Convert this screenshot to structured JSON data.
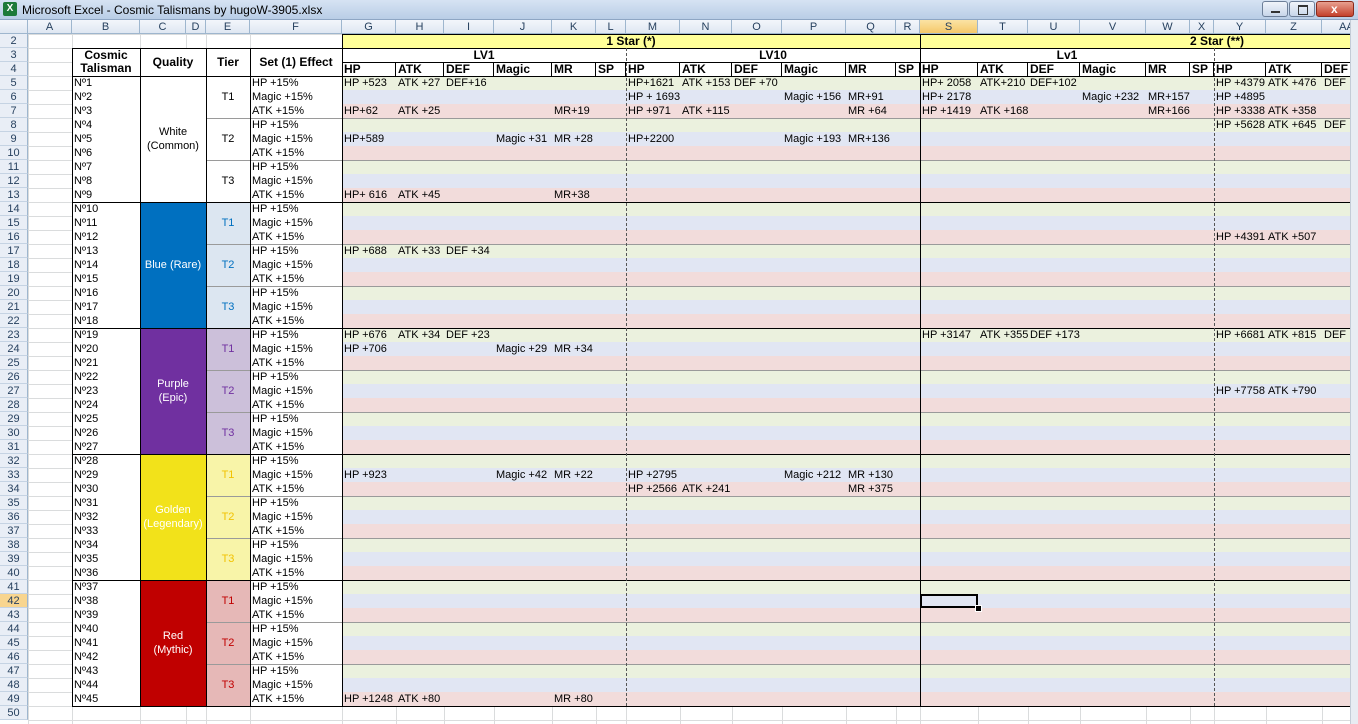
{
  "window": {
    "title": "Microsoft Excel - Cosmic Talismans by hugoW-3905.xlsx"
  },
  "sheet": {
    "columns": [
      "A",
      "B",
      "C",
      "D",
      "E",
      "F",
      "G",
      "H",
      "I",
      "J",
      "K",
      "L",
      "M",
      "N",
      "O",
      "P",
      "Q",
      "R",
      "S",
      "T",
      "U",
      "V",
      "W",
      "X",
      "Y",
      "Z",
      "AA"
    ],
    "row_numbers": [
      2,
      3,
      4,
      5,
      6,
      7,
      8,
      9,
      10,
      11,
      12,
      13,
      14,
      15,
      16,
      17,
      18,
      19,
      20,
      21,
      22,
      23,
      24,
      25,
      26,
      27,
      28,
      29,
      30,
      31,
      32,
      33,
      34,
      35,
      36,
      37,
      38,
      39,
      40,
      41,
      42,
      43,
      44,
      45,
      46,
      47,
      48,
      49,
      50
    ],
    "headers": {
      "talisman": "Cosmic Talisman",
      "quality": "Quality",
      "tier": "Tier",
      "effect": "Set (1) Effect"
    },
    "stars": [
      "1 Star (*)",
      "2 Star (**)"
    ],
    "levels": [
      "LV1",
      "LV10",
      "Lv1"
    ],
    "stat_headers": {
      "G": "HP",
      "H": "ATK",
      "I": "DEF",
      "J": "Magic",
      "K": "MR",
      "L": "SP",
      "M": "HP",
      "N": "ATK",
      "O": "DEF",
      "P": "Magic",
      "Q": "MR",
      "R": "SP",
      "S": "HP",
      "T": "ATK",
      "U": "DEF",
      "V": "Magic",
      "W": "MR",
      "X": "SP",
      "Y": "HP",
      "Z": "ATK",
      "AA": "DEF"
    },
    "talismans": [
      "Nº1",
      "Nº2",
      "Nº3",
      "Nº4",
      "Nº5",
      "Nº6",
      "Nº7",
      "Nº8",
      "Nº9",
      "Nº10",
      "Nº11",
      "Nº12",
      "Nº13",
      "Nº14",
      "Nº15",
      "Nº16",
      "Nº17",
      "Nº18",
      "Nº19",
      "Nº20",
      "Nº21",
      "Nº22",
      "Nº23",
      "Nº24",
      "Nº25",
      "Nº26",
      "Nº27",
      "Nº28",
      "Nº29",
      "Nº30",
      "Nº31",
      "Nº32",
      "Nº33",
      "Nº34",
      "Nº35",
      "Nº36",
      "Nº37",
      "Nº38",
      "Nº39",
      "Nº40",
      "Nº41",
      "Nº42",
      "Nº43",
      "Nº44",
      "Nº45"
    ],
    "effects": [
      "HP +15%",
      "Magic +15%",
      "ATK +15%",
      "HP +15%",
      "Magic +15%",
      "ATK +15%",
      "HP +15%",
      "Magic +15%",
      "ATK +15%",
      "HP +15%",
      "Magic +15%",
      "ATK +15%",
      "HP +15%",
      "Magic +15%",
      "ATK +15%",
      "HP +15%",
      "Magic +15%",
      "ATK +15%",
      "HP +15%",
      "Magic +15%",
      "ATK +15%",
      "HP +15%",
      "Magic +15%",
      "ATK +15%",
      "HP +15%",
      "Magic +15%",
      "ATK +15%",
      "HP +15%",
      "Magic +15%",
      "ATK +15%",
      "HP +15%",
      "Magic +15%",
      "ATK +15%",
      "HP +15%",
      "Magic +15%",
      "ATK +15%",
      "HP +15%",
      "Magic +15%",
      "ATK +15%",
      "HP +15%",
      "Magic +15%",
      "ATK +15%",
      "HP +15%",
      "Magic +15%",
      "ATK +15%"
    ],
    "qualities": [
      {
        "label": "White (Common)",
        "color": "#ffffff",
        "text_color": "#000000",
        "tier_fill": "#ffffff",
        "tier_color": "#000000",
        "tiers": [
          "T1",
          "T2",
          "T3"
        ]
      },
      {
        "label": "Blue (Rare)",
        "color": "#0070c0",
        "text_color": "#ffffff",
        "tier_fill": "#dce6f1",
        "tier_color": "#0070c0",
        "tiers": [
          "T1",
          "T2",
          "T3"
        ]
      },
      {
        "label": "Purple (Epic)",
        "color": "#7030a0",
        "text_color": "#ffffff",
        "tier_fill": "#ccc0da",
        "tier_color": "#7030a0",
        "tiers": [
          "T1",
          "T2",
          "T3"
        ]
      },
      {
        "label": "Golden (Legendary)",
        "color": "#f2e21a",
        "text_color": "#ffffff",
        "tier_fill": "#f8f4a8",
        "tier_color": "#f2c200",
        "tiers": [
          "T1",
          "T2",
          "T3"
        ]
      },
      {
        "label": "Red (Mythic)",
        "color": "#c00000",
        "text_color": "#ffffff",
        "tier_fill": "#e6b8b7",
        "tier_color": "#c00000",
        "tiers": [
          "T1",
          "T2",
          "T3"
        ]
      }
    ],
    "stats": [
      {
        "G": "HP +523",
        "H": "ATK +27",
        "I": "DEF+16",
        "M": "HP+1621",
        "N": "ATK +153",
        "O": "DEF +70",
        "S": "HP+ 2058",
        "T": "ATK+210",
        "U": "DEF+102",
        "Y": "HP +4379",
        "Z": "ATK +476",
        "AA": "DEF"
      },
      {
        "M": "HP + 1693",
        "P": "Magic +156",
        "Q": "MR+91",
        "S": "HP+ 2178",
        "V": "Magic +232",
        "W": "MR+157",
        "Y": "HP +4895"
      },
      {
        "G": "HP+62",
        "H": "ATK +25",
        "K": "MR+19",
        "M": "HP +971",
        "N": "ATK +115",
        "Q": "MR +64",
        "S": "HP +1419",
        "T": "ATK +168",
        "W": "MR+166",
        "Y": "HP +3338",
        "Z": "ATK +358"
      },
      {
        "Y": "HP +5628",
        "Z": "ATK +645",
        "AA": "DEF"
      },
      {
        "G": "HP+589",
        "J": "Magic +31",
        "K": "MR +28",
        "M": "HP+2200",
        "P": "Magic +193",
        "Q": "MR+136"
      },
      {},
      {},
      {},
      {
        "G": "HP+ 616",
        "H": "ATK +45",
        "K": "MR+38"
      },
      {},
      {},
      {
        "Y": "HP +4391",
        "Z": "ATK +507"
      },
      {
        "G": "HP +688",
        "H": "ATK +33",
        "I": "DEF +34"
      },
      {},
      {},
      {},
      {},
      {},
      {
        "G": "HP +676",
        "H": "ATK +34",
        "I": "DEF +23",
        "S": "HP +3147",
        "T": "ATK +355",
        "U": "DEF +173",
        "Y": "HP +6681",
        "Z": "ATK +815",
        "AA": "DEF"
      },
      {
        "G": "HP +706",
        "J": "Magic +29",
        "K": "MR +34"
      },
      {},
      {},
      {
        "Y": "HP +7758",
        "Z": "ATK +790"
      },
      {},
      {},
      {},
      {},
      {},
      {
        "G": "HP +923",
        "J": "Magic +42",
        "K": "MR +22",
        "M": "HP +2795",
        "P": "Magic +212",
        "Q": "MR +130"
      },
      {
        "M": "HP +2566",
        "N": "ATK +241",
        "Q": "MR +375"
      },
      {},
      {},
      {},
      {},
      {},
      {},
      {},
      {},
      {},
      {},
      {},
      {},
      {},
      {},
      {
        "G": "HP +1248",
        "H": "ATK +80",
        "K": "MR +80"
      }
    ]
  }
}
